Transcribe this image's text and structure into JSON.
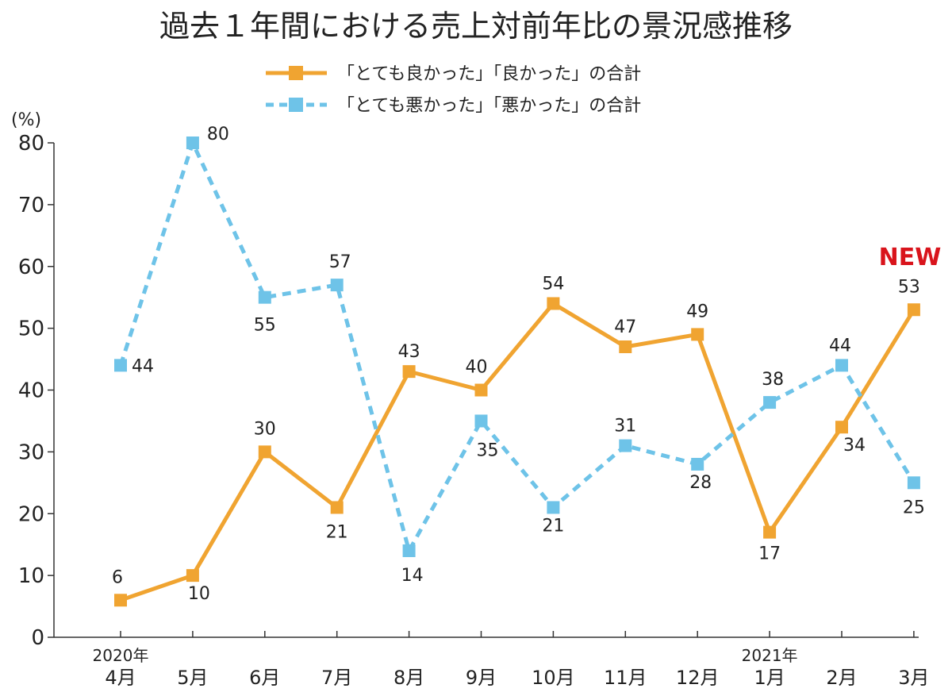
{
  "chart_data": {
    "type": "line",
    "title": "過去１年間における売上対前年比の景況感推移",
    "ylabel": "(%)",
    "ylim": [
      0,
      80
    ],
    "yticks": [
      "0",
      "10",
      "20",
      "30",
      "40",
      "50",
      "60",
      "70",
      "80"
    ],
    "categories": [
      "4月",
      "5月",
      "6月",
      "7月",
      "8月",
      "9月",
      "10月",
      "11月",
      "12月",
      "1月",
      "2月",
      "3月"
    ],
    "year_labels": [
      {
        "index": 0,
        "text": "2020年"
      },
      {
        "index": 9,
        "text": "2021年"
      }
    ],
    "series": [
      {
        "name": "「とても良かった」「良かった」の合計",
        "color": "#f0a431",
        "style": "solid",
        "values": [
          6,
          10,
          30,
          21,
          43,
          40,
          54,
          47,
          49,
          17,
          34,
          53
        ],
        "labels": [
          "6",
          "10",
          "30",
          "21",
          "43",
          "40",
          "54",
          "47",
          "49",
          "17",
          "34",
          "53"
        ]
      },
      {
        "name": "「とても悪かった」「悪かった」の合計",
        "color": "#6ec3e8",
        "style": "dashed",
        "values": [
          44,
          80,
          55,
          57,
          14,
          35,
          21,
          31,
          28,
          38,
          44,
          25
        ],
        "labels": [
          "44",
          "80",
          "55",
          "57",
          "14",
          "35",
          "21",
          "31",
          "28",
          "38",
          "44",
          "25"
        ]
      }
    ],
    "annotation": "NEW",
    "grid": false,
    "legend_position": "top-center"
  }
}
